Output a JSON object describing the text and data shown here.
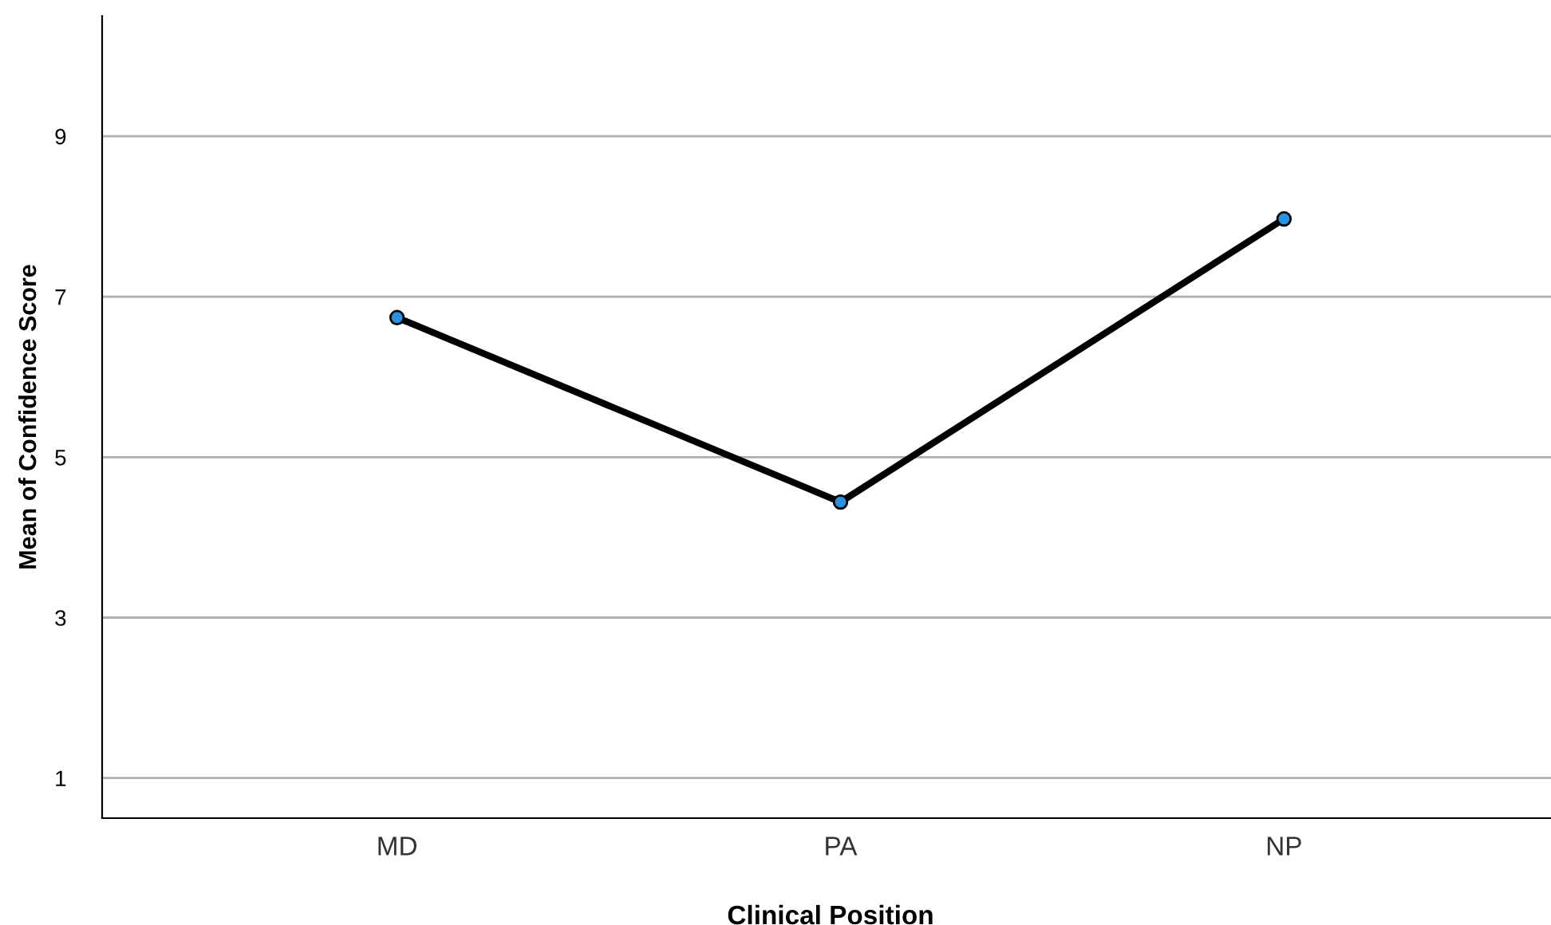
{
  "chart_data": {
    "type": "line",
    "xlabel": "Clinical Position",
    "ylabel": "Mean of Confidence Score",
    "categories": [
      "MD",
      "PA",
      "NP"
    ],
    "series": [
      {
        "color": "#000000",
        "values": [
          6.74,
          4.44,
          7.97
        ]
      }
    ],
    "ylim": [
      0.5,
      10.5
    ],
    "yticks": [
      1,
      3,
      5,
      7,
      9
    ],
    "grid": "y",
    "marker": "circle",
    "line_style": "solid"
  }
}
